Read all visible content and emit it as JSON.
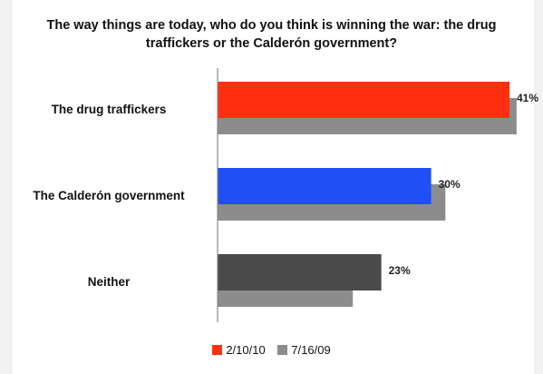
{
  "chart_data": {
    "type": "bar",
    "orientation": "horizontal",
    "title_lines": [
      "The way things are today, who do you think is winning the war: the drug",
      "traffickers or the Calderón government?"
    ],
    "categories": [
      "The drug traffickers",
      "The Calderón government",
      "Neither"
    ],
    "series": [
      {
        "name": "2/10/10",
        "values": [
          41,
          30,
          23
        ],
        "point_colors": [
          "#ff3010",
          "#1f4ff5",
          "#4a4a4a"
        ],
        "labels": [
          "41%",
          "30%",
          "23%"
        ]
      },
      {
        "name": "7/16/09",
        "values": [
          42,
          32,
          19
        ],
        "color": "#8c8c8c"
      }
    ],
    "legend": {
      "placement": "bottom",
      "items": [
        {
          "label": "2/10/10",
          "color": "#ff3010"
        },
        {
          "label": "7/16/09",
          "color": "#8c8c8c"
        }
      ]
    },
    "xlim": [
      0,
      45
    ],
    "grid": false
  }
}
